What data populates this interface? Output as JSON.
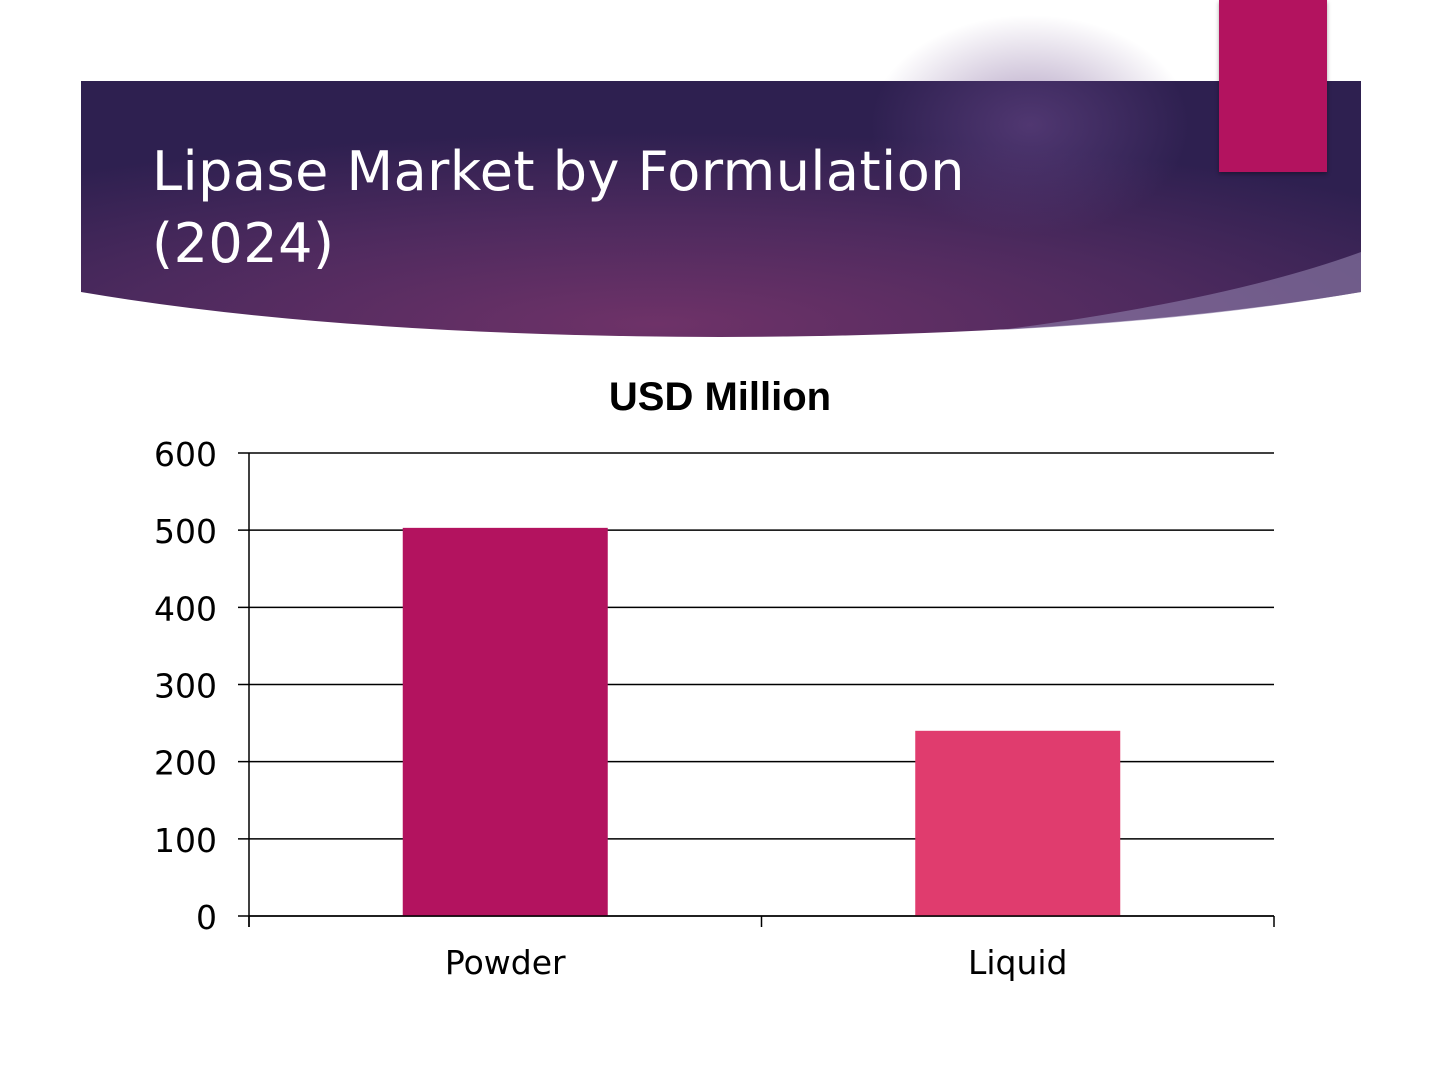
{
  "slide": {
    "title_line1": "Lipase Market by Formulation",
    "title_line2": "(2024)"
  },
  "colors": {
    "banner_dark": "#2f2050",
    "banner_mid": "#6a2f66",
    "accent": "#b3135f",
    "bar_powder": "#b3135f",
    "bar_liquid": "#e03c6e"
  },
  "chart_data": {
    "type": "bar",
    "title": "USD Million",
    "categories": [
      "Powder",
      "Liquid"
    ],
    "values": [
      503,
      240
    ],
    "bar_colors": [
      "#b3135f",
      "#e03c6e"
    ],
    "ylim": [
      0,
      600
    ],
    "yticks": [
      0,
      100,
      200,
      300,
      400,
      500,
      600
    ],
    "xlabel": "",
    "ylabel": "",
    "grid": true,
    "legend": "none"
  }
}
